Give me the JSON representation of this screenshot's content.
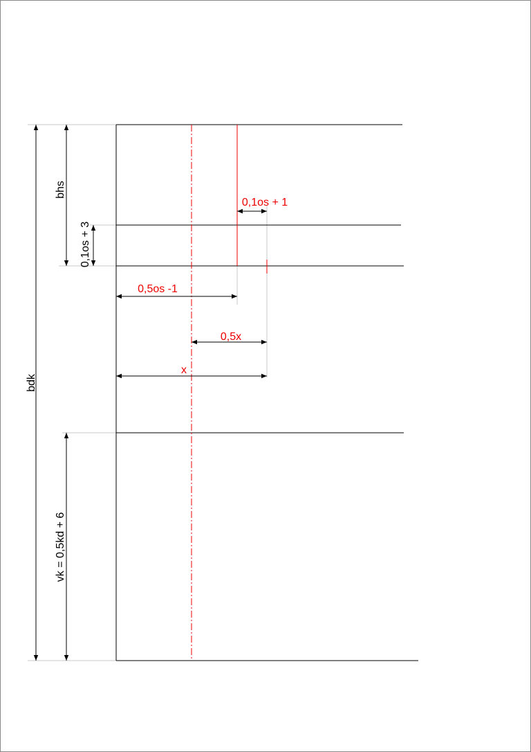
{
  "labels": {
    "bdk": "bdk",
    "bhs": "bhs",
    "front_a": "0,1os + 3",
    "vk": "vk = 0,5kd + 6",
    "top": "0,1os + 1",
    "half_os": "0,5os -1",
    "half_x": "0,5x",
    "x": "x"
  }
}
